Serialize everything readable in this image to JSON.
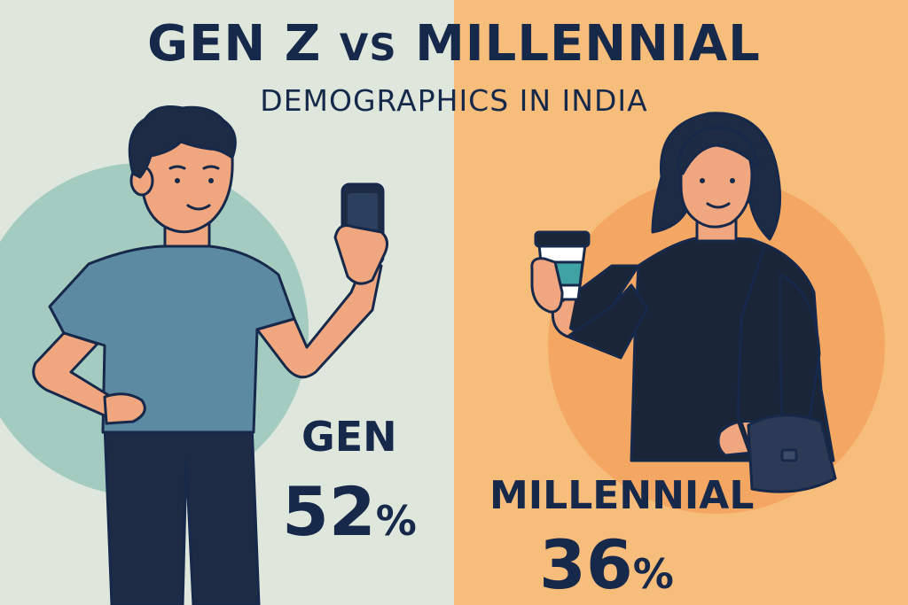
{
  "header": {
    "title_left": "GEN Z",
    "title_vs": "VS",
    "title_right": "MILLENNIAL",
    "subtitle": "DEMOGRAPHICS IN INDIA"
  },
  "gen_z": {
    "label": "GEN",
    "value": "52",
    "unit": "%",
    "percent": 52
  },
  "millennial": {
    "label": "MILLENNIAL",
    "value": "36",
    "unit": "%",
    "percent": 36
  },
  "colors": {
    "left_background": "#dfe7dc",
    "right_background": "#f7bd7a",
    "left_circle": "#a3cbc0",
    "right_circle": "#f4a763",
    "text_navy": "#17294a",
    "shirt_blue": "#5b8aa2",
    "skin": "#f0a67e",
    "dress_black": "#1b2538",
    "cup_teal": "#3fa3a3"
  },
  "icons": {
    "gen_z_person": "young-man-with-phone-illustration",
    "millennial_person": "woman-with-coffee-and-bag-illustration",
    "phone": "smartphone-icon",
    "coffee_cup": "coffee-cup-icon",
    "handbag": "handbag-icon"
  }
}
